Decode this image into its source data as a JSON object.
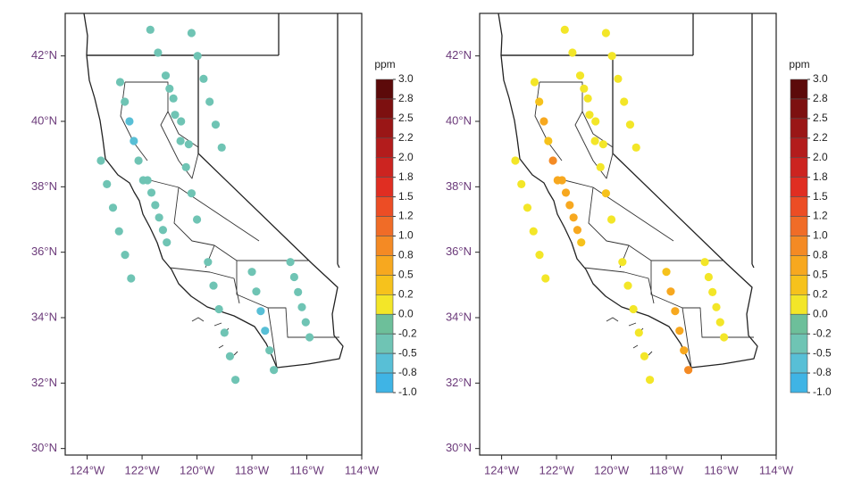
{
  "chart_data": [
    {
      "type": "scatter",
      "x": [
        -121.7,
        -121.42,
        -121.14,
        -120.86,
        -120.58,
        -120.3,
        -120.2,
        -119.98,
        -119.76,
        -119.54,
        -119.32,
        -119.1,
        -123.5,
        -123.28,
        -123.06,
        -122.84,
        -122.62,
        -122.4,
        -122.8,
        -122.63,
        -122.46,
        -122.3,
        -122.13,
        -121.96,
        -119.6,
        -119.4,
        -119.2,
        -119.0,
        -118.8,
        -118.6,
        -116.6,
        -116.46,
        -116.32,
        -116.18,
        -116.04,
        -115.9,
        -118.0,
        -117.84,
        -117.68,
        -117.52,
        -117.36,
        -117.2,
        -121.8,
        -121.66,
        -121.52,
        -121.38,
        -121.24,
        -121.1,
        -121.0,
        -120.8,
        -120.6,
        -120.4,
        -120.2,
        -120.0
      ],
      "y": [
        42.8,
        42.1,
        41.4,
        40.7,
        40.0,
        39.3,
        42.7,
        42.0,
        41.3,
        40.6,
        39.9,
        39.2,
        38.8,
        38.08,
        37.36,
        36.64,
        35.92,
        35.2,
        41.2,
        40.6,
        40.0,
        39.4,
        38.8,
        38.2,
        35.7,
        34.98,
        34.26,
        33.54,
        32.82,
        32.1,
        35.7,
        35.24,
        34.78,
        34.32,
        33.86,
        33.4,
        35.4,
        34.8,
        34.2,
        33.6,
        33.0,
        32.4,
        38.2,
        37.82,
        37.44,
        37.06,
        36.68,
        36.3,
        41.0,
        40.2,
        39.4,
        38.6,
        37.8,
        37.0
      ],
      "values": [
        -0.3,
        -0.3,
        -0.3,
        -0.3,
        -0.3,
        -0.3,
        -0.3,
        -0.3,
        -0.3,
        -0.3,
        -0.3,
        -0.3,
        -0.3,
        -0.3,
        -0.3,
        -0.3,
        -0.3,
        -0.3,
        -0.3,
        -0.5,
        -0.7,
        -0.8,
        -0.4,
        -0.3,
        -0.3,
        -0.3,
        -0.3,
        -0.3,
        -0.3,
        -0.3,
        -0.3,
        -0.3,
        -0.3,
        -0.3,
        -0.3,
        -0.3,
        -0.3,
        -0.4,
        -0.7,
        -0.7,
        -0.3,
        -0.3,
        -0.3,
        -0.4,
        -0.3,
        -0.3,
        -0.3,
        -0.3,
        -0.3,
        -0.3,
        -0.3,
        -0.3,
        -0.3,
        -0.3
      ],
      "xlim": [
        -124.8,
        -114
      ],
      "ylim": [
        29.8,
        43.3
      ],
      "xticks": [
        {
          "value": -124,
          "label": "124°W"
        },
        {
          "value": -122,
          "label": "122°W"
        },
        {
          "value": -120,
          "label": "120°W"
        },
        {
          "value": -118,
          "label": "118°W"
        },
        {
          "value": -116,
          "label": "116°W"
        },
        {
          "value": -114,
          "label": "114°W"
        }
      ],
      "yticks": [
        {
          "value": 42,
          "label": "42°N"
        },
        {
          "value": 40,
          "label": "40°N"
        },
        {
          "value": 38,
          "label": "38°N"
        },
        {
          "value": 36,
          "label": "36°N"
        },
        {
          "value": 34,
          "label": "34°N"
        },
        {
          "value": 32,
          "label": "32°N"
        },
        {
          "value": 30,
          "label": "30°N"
        }
      ],
      "colorbar": {
        "label": "ppm",
        "ticks": [
          {
            "value": 3,
            "label": "3.0"
          },
          2.8,
          2.5,
          2.2,
          {
            "value": 2,
            "label": "2.0"
          },
          1.8,
          1.5,
          1.2,
          {
            "value": 1,
            "label": "1.0"
          },
          0.8,
          0.5,
          0.2,
          {
            "value": 0,
            "label": "0.0"
          },
          -0.2,
          -0.5,
          -0.8,
          {
            "value": -1,
            "label": "-1.0"
          }
        ],
        "colors": [
          "#5c0a0a",
          "#7d1010",
          "#9a1616",
          "#b31c1c",
          "#cc2420",
          "#e02e22",
          "#ec4d25",
          "#f06c27",
          "#f48a24",
          "#f7a81f",
          "#f6c21c",
          "#f3e628",
          "#6dbf9a",
          "#6fc4b4",
          "#58bfd6",
          "#3fb4e5"
        ]
      }
    },
    {
      "type": "scatter",
      "x": [
        -121.7,
        -121.42,
        -121.14,
        -120.86,
        -120.58,
        -120.3,
        -120.2,
        -119.98,
        -119.76,
        -119.54,
        -119.32,
        -119.1,
        -123.5,
        -123.28,
        -123.06,
        -122.84,
        -122.62,
        -122.4,
        -122.8,
        -122.63,
        -122.46,
        -122.3,
        -122.13,
        -121.96,
        -119.6,
        -119.4,
        -119.2,
        -119.0,
        -118.8,
        -118.6,
        -116.6,
        -116.46,
        -116.32,
        -116.18,
        -116.04,
        -115.9,
        -118.0,
        -117.84,
        -117.68,
        -117.52,
        -117.36,
        -117.2,
        -121.8,
        -121.66,
        -121.52,
        -121.38,
        -121.24,
        -121.1,
        -121.0,
        -120.8,
        -120.6,
        -120.4,
        -120.2,
        -120.0
      ],
      "y": [
        42.8,
        42.1,
        41.4,
        40.7,
        40.0,
        39.3,
        42.7,
        42.0,
        41.3,
        40.6,
        39.9,
        39.2,
        38.8,
        38.08,
        37.36,
        36.64,
        35.92,
        35.2,
        41.2,
        40.6,
        40.0,
        39.4,
        38.8,
        38.2,
        35.7,
        34.98,
        34.26,
        33.54,
        32.82,
        32.1,
        35.7,
        35.24,
        34.78,
        34.32,
        33.86,
        33.4,
        35.4,
        34.8,
        34.2,
        33.6,
        33.0,
        32.4,
        38.2,
        37.82,
        37.44,
        37.06,
        36.68,
        36.3,
        41.0,
        40.2,
        39.4,
        38.6,
        37.8,
        37.0
      ],
      "values": [
        0.1,
        0.1,
        0.1,
        0.1,
        0.1,
        0.1,
        0.1,
        0.1,
        0.1,
        0.1,
        0.1,
        0.1,
        0.1,
        0.1,
        0.1,
        0.1,
        0.1,
        0.1,
        0.1,
        0.3,
        0.6,
        0.4,
        0.9,
        0.6,
        0.1,
        0.1,
        0.1,
        0.1,
        0.1,
        0.1,
        0.1,
        0.1,
        0.1,
        0.1,
        0.1,
        0.1,
        0.4,
        0.6,
        0.6,
        0.5,
        0.7,
        0.8,
        0.6,
        0.7,
        0.6,
        0.5,
        0.6,
        0.4,
        0.1,
        0.1,
        0.1,
        0.1,
        0.2,
        0.1
      ],
      "xlim": [
        -124.8,
        -114
      ],
      "ylim": [
        29.8,
        43.3
      ],
      "xticks": [
        {
          "value": -124,
          "label": "124°W"
        },
        {
          "value": -122,
          "label": "122°W"
        },
        {
          "value": -120,
          "label": "120°W"
        },
        {
          "value": -118,
          "label": "118°W"
        },
        {
          "value": -116,
          "label": "116°W"
        },
        {
          "value": -114,
          "label": "114°W"
        }
      ],
      "yticks": [
        {
          "value": 42,
          "label": "42°N"
        },
        {
          "value": 40,
          "label": "40°N"
        },
        {
          "value": 38,
          "label": "38°N"
        },
        {
          "value": 36,
          "label": "36°N"
        },
        {
          "value": 34,
          "label": "34°N"
        },
        {
          "value": 32,
          "label": "32°N"
        },
        {
          "value": 30,
          "label": "30°N"
        }
      ],
      "colorbar": {
        "label": "ppm",
        "ticks": [
          {
            "value": 3,
            "label": "3.0"
          },
          2.8,
          2.5,
          2.2,
          {
            "value": 2,
            "label": "2.0"
          },
          1.8,
          1.5,
          1.2,
          {
            "value": 1,
            "label": "1.0"
          },
          0.8,
          0.5,
          0.2,
          {
            "value": 0,
            "label": "0.0"
          },
          -0.2,
          -0.5,
          -0.8,
          {
            "value": -1,
            "label": "-1.0"
          }
        ],
        "colors": [
          "#5c0a0a",
          "#7d1010",
          "#9a1616",
          "#b31c1c",
          "#cc2420",
          "#e02e22",
          "#ec4d25",
          "#f06c27",
          "#f48a24",
          "#f7a81f",
          "#f6c21c",
          "#f3e628",
          "#6dbf9a",
          "#6fc4b4",
          "#58bfd6",
          "#3fb4e5"
        ]
      }
    }
  ]
}
